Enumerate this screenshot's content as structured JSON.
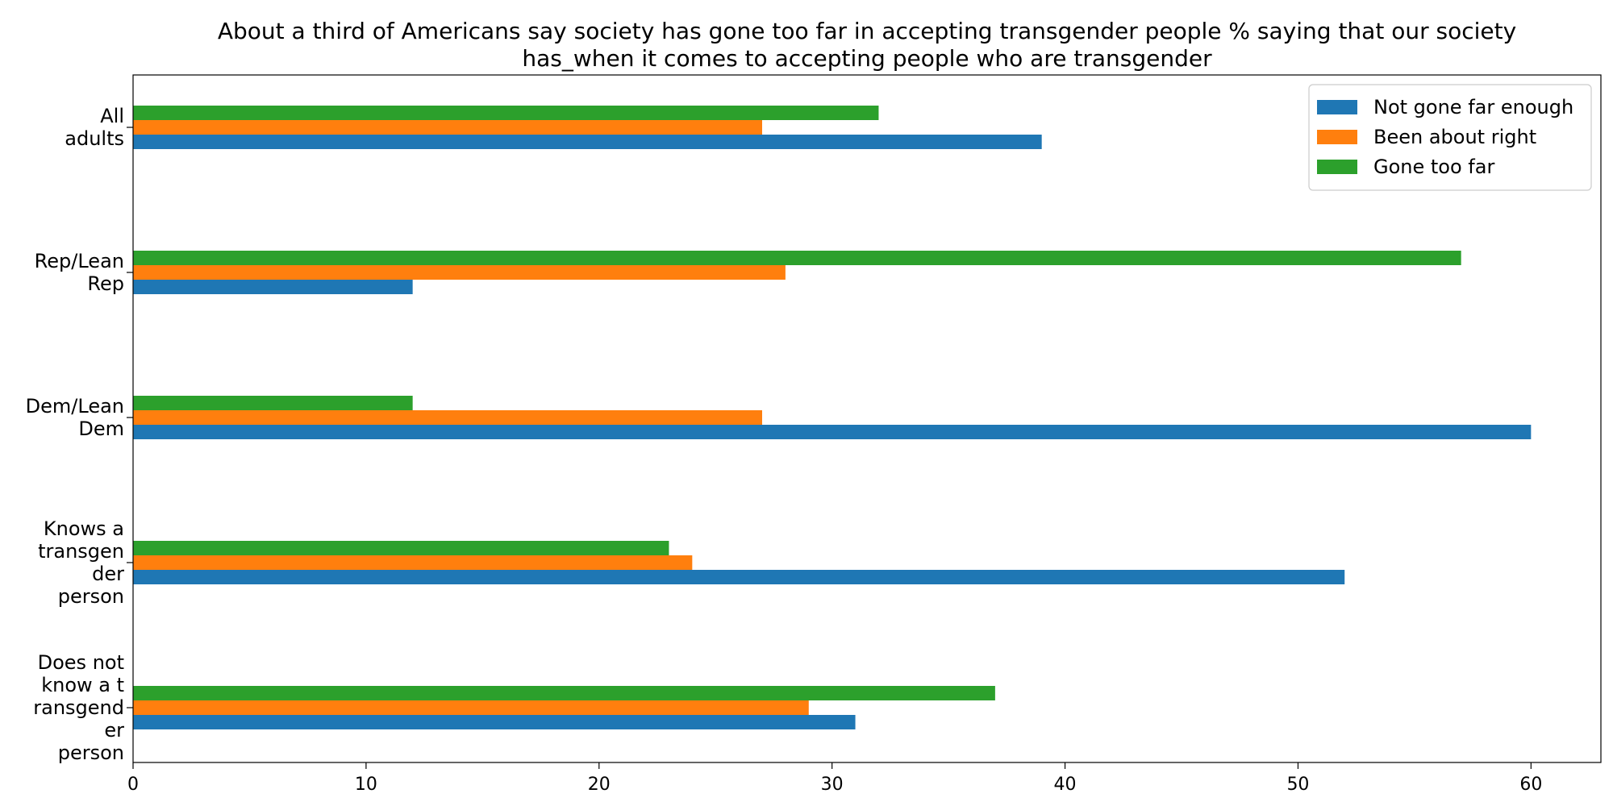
{
  "chart_data": {
    "type": "bar",
    "orientation": "horizontal",
    "title_lines": [
      "About a third of Americans say society has gone too far in accepting transgender people % saying that our society",
      "has_when it comes to accepting people who are transgender"
    ],
    "xlabel": "",
    "ylabel": "",
    "xlim": [
      0,
      63
    ],
    "xticks": [
      0,
      10,
      20,
      30,
      40,
      50,
      60
    ],
    "grid": false,
    "legend_position": "top-right",
    "categories": [
      {
        "lines": [
          "All",
          "adults"
        ]
      },
      {
        "lines": [
          "Rep/Lean",
          "Rep"
        ]
      },
      {
        "lines": [
          "Dem/Lean",
          "Dem"
        ]
      },
      {
        "lines": [
          "Knows a",
          "transgen",
          "der",
          "person"
        ]
      },
      {
        "lines": [
          "Does not",
          "know a t",
          "ransgend",
          "er",
          "person"
        ]
      }
    ],
    "series": [
      {
        "name": "Not gone far enough",
        "color": "#1f77b4",
        "values": [
          39,
          12,
          60,
          52,
          31
        ]
      },
      {
        "name": "Been about right",
        "color": "#ff7f0e",
        "values": [
          27,
          28,
          27,
          24,
          29
        ]
      },
      {
        "name": "Gone too far",
        "color": "#2ca02c",
        "values": [
          32,
          57,
          12,
          23,
          37
        ]
      }
    ]
  }
}
